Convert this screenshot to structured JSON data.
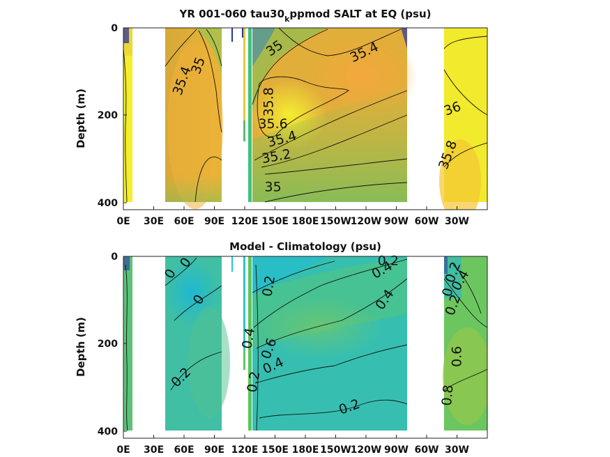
{
  "figure": {
    "panels": [
      {
        "title_main": "YR 001-060 tau30",
        "title_sub": "k",
        "title_rest": "ppmod SALT at EQ (psu)",
        "ylabel": "Depth (m)",
        "colors": {
          "base": "#e0aa38",
          "fresh": "#8cc450",
          "salty": "#f2f228",
          "very_fresh": "#2a35a0"
        },
        "contour_labels": [
          "35.4",
          "35",
          "35",
          "35.4",
          "35.8",
          "35.6",
          "35.4",
          "35.2",
          "35",
          "36",
          "35.8"
        ]
      },
      {
        "title_main": "Model - Climatology (psu)",
        "ylabel": "Depth (m)",
        "colors": {
          "base": "#3cbfa8",
          "warm": "#80c860",
          "cool": "#22b8cc",
          "very_fresh": "#2a35a0"
        },
        "contour_labels": [
          "0",
          "0",
          "0",
          "0.2",
          "0.2",
          "0.4",
          "0.2",
          "0.4",
          "0.6",
          "0.2",
          "0.4",
          "0.2",
          "0.2",
          "0.4",
          "0",
          "0.2",
          "0.4",
          "0.6",
          "0.8"
        ]
      }
    ]
  },
  "chart_data": [
    {
      "type": "heatmap",
      "title": "YR 001-060 tau30kppmod SALT at EQ (psu)",
      "xlabel": "",
      "ylabel": "Depth (m)",
      "x_ticks": [
        "0E",
        "30E",
        "60E",
        "90E",
        "120E",
        "150E",
        "180E",
        "150W",
        "120W",
        "90W",
        "60W",
        "30W"
      ],
      "x_tick_values": [
        0,
        30,
        60,
        90,
        120,
        150,
        180,
        210,
        240,
        270,
        300,
        330
      ],
      "xlim": [
        0,
        360
      ],
      "y_ticks": [
        "0",
        "200",
        "400"
      ],
      "y_tick_values": [
        0,
        200,
        400
      ],
      "ylim": [
        400,
        0
      ],
      "ocean_segments_lon": [
        [
          0,
          9
        ],
        [
          43,
          97
        ],
        [
          100,
          101
        ],
        [
          108,
          109
        ],
        [
          113,
          114
        ],
        [
          125,
          282
        ],
        [
          315,
          360
        ]
      ],
      "contour_levels_labeled": [
        35,
        35.2,
        35.4,
        35.6,
        35.8,
        36
      ],
      "contour_label_positions": [
        {
          "text": "35.4",
          "lon": 62,
          "depth": 125
        },
        {
          "text": "35",
          "lon": 78,
          "depth": 90
        },
        {
          "text": "35",
          "lon": 152,
          "depth": 55
        },
        {
          "text": "35.4",
          "lon": 240,
          "depth": 65
        },
        {
          "text": "35.8",
          "lon": 148,
          "depth": 170
        },
        {
          "text": "35.6",
          "lon": 148,
          "depth": 230
        },
        {
          "text": "35.4",
          "lon": 158,
          "depth": 265
        },
        {
          "text": "35.2",
          "lon": 152,
          "depth": 305
        },
        {
          "text": "35",
          "lon": 148,
          "depth": 375
        },
        {
          "text": "36",
          "lon": 327,
          "depth": 195
        },
        {
          "text": "35.8",
          "lon": 325,
          "depth": 295
        }
      ]
    },
    {
      "type": "heatmap",
      "title": "Model - Climatology (psu)",
      "xlabel": "",
      "ylabel": "Depth (m)",
      "x_ticks": [
        "0E",
        "30E",
        "60E",
        "90E",
        "120E",
        "150E",
        "180E",
        "150W",
        "120W",
        "90W",
        "60W",
        "30W"
      ],
      "x_tick_values": [
        0,
        30,
        60,
        90,
        120,
        150,
        180,
        210,
        240,
        270,
        300,
        330
      ],
      "xlim": [
        0,
        360
      ],
      "y_ticks": [
        "0",
        "200",
        "400"
      ],
      "y_tick_values": [
        0,
        200,
        400
      ],
      "ylim": [
        400,
        0
      ],
      "ocean_segments_lon": [
        [
          0,
          9
        ],
        [
          43,
          97
        ],
        [
          100,
          101
        ],
        [
          108,
          109
        ],
        [
          113,
          114
        ],
        [
          125,
          282
        ],
        [
          315,
          360
        ]
      ],
      "contour_levels_labeled": [
        0,
        0.2,
        0.4,
        0.6,
        0.8
      ],
      "contour_label_positions": [
        {
          "text": "0",
          "lon": 50,
          "depth": 45
        },
        {
          "text": "0",
          "lon": 65,
          "depth": 20
        },
        {
          "text": "0",
          "lon": 78,
          "depth": 105
        },
        {
          "text": "0.2",
          "lon": 60,
          "depth": 285
        },
        {
          "text": "0.2",
          "lon": 148,
          "depth": 70
        },
        {
          "text": "0.4",
          "lon": 128,
          "depth": 190
        },
        {
          "text": "0.2",
          "lon": 133,
          "depth": 290
        },
        {
          "text": "0.4",
          "lon": 150,
          "depth": 260
        },
        {
          "text": "0.6",
          "lon": 148,
          "depth": 215
        },
        {
          "text": "0.2",
          "lon": 225,
          "depth": 355
        },
        {
          "text": "0.4",
          "lon": 262,
          "depth": 105
        },
        {
          "text": "0.2",
          "lon": 262,
          "depth": 20
        },
        {
          "text": "0.4",
          "lon": 258,
          "depth": 40
        },
        {
          "text": "0.2",
          "lon": 330,
          "depth": 40
        },
        {
          "text": "0",
          "lon": 325,
          "depth": 85
        },
        {
          "text": "0.2",
          "lon": 330,
          "depth": 115
        },
        {
          "text": "0.4",
          "lon": 337,
          "depth": 60
        },
        {
          "text": "0.6",
          "lon": 334,
          "depth": 230
        },
        {
          "text": "0.8",
          "lon": 325,
          "depth": 320
        }
      ]
    }
  ]
}
